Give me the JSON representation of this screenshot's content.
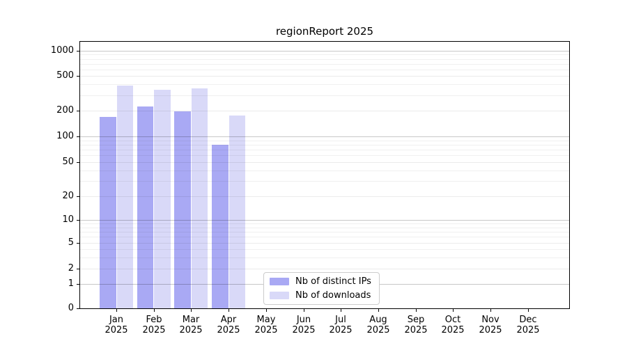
{
  "chart_data": {
    "type": "bar",
    "title": "regionReport 2025",
    "x": {
      "categories": [
        "Jan",
        "Feb",
        "Mar",
        "Apr",
        "May",
        "Jun",
        "Jul",
        "Aug",
        "Sep",
        "Oct",
        "Nov",
        "Dec"
      ],
      "year_label": "2025"
    },
    "y": {
      "scale": "symlog",
      "ticks": [
        0,
        1,
        2,
        5,
        10,
        20,
        50,
        100,
        200,
        500,
        1000
      ],
      "range": [
        0,
        1000
      ],
      "grid": true
    },
    "series": [
      {
        "name": "Nb of distinct IPs",
        "slug": "distinct-ips",
        "color": "#a9a9f4",
        "values": [
          170,
          225,
          195,
          80,
          0,
          0,
          0,
          0,
          0,
          0,
          0,
          0
        ]
      },
      {
        "name": "Nb of downloads",
        "slug": "downloads",
        "color": "#d9d9f8",
        "values": [
          390,
          345,
          360,
          175,
          0,
          0,
          0,
          0,
          0,
          0,
          0,
          0
        ]
      }
    ],
    "legend": {
      "position": "bottom-center"
    }
  }
}
